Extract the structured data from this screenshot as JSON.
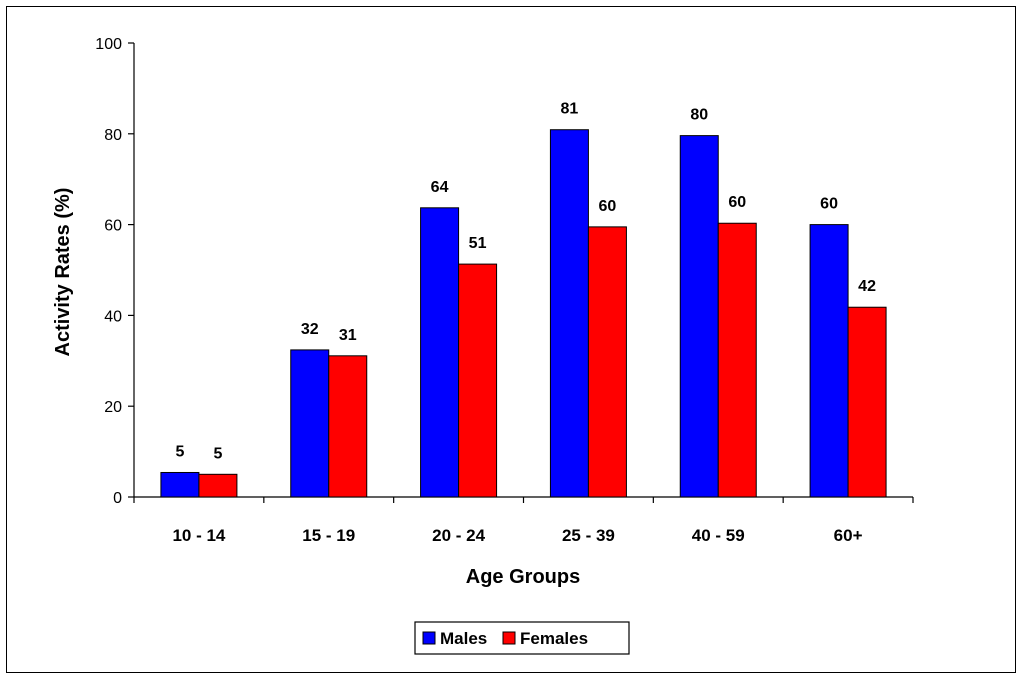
{
  "chart_data": {
    "type": "bar",
    "title": "",
    "xlabel": "Age Groups",
    "ylabel": "Activity Rates (%)",
    "ylim": [
      0,
      100
    ],
    "yticks": [
      0,
      20,
      40,
      60,
      80,
      100
    ],
    "categories": [
      "10 - 14",
      "15 - 19",
      "20 - 24",
      "25 - 39",
      "40 - 59",
      "60+"
    ],
    "series": [
      {
        "name": "Males",
        "color": "#0000ff",
        "values": [
          5.4,
          32.4,
          63.7,
          80.9,
          79.6,
          60.0
        ],
        "labels": [
          "5",
          "32",
          "64",
          "81",
          "80",
          "60"
        ]
      },
      {
        "name": "Females",
        "color": "#ff0000",
        "values": [
          5.0,
          31.1,
          51.3,
          59.5,
          60.3,
          41.8
        ],
        "labels": [
          "5",
          "31",
          "51",
          "60",
          "60",
          "42"
        ]
      }
    ],
    "grid": false,
    "legend_position": "bottom"
  }
}
